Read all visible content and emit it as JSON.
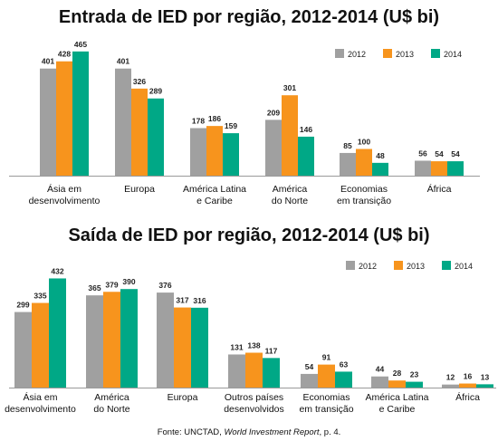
{
  "colors": {
    "2012": "#a0a0a0",
    "2013": "#f7941d",
    "2014": "#00a886",
    "axis": "#9a9a9a"
  },
  "source": {
    "prefix": "Fonte: UNCTAD, ",
    "italic": "World Investment Report",
    "suffix": ", p. 4."
  },
  "chart_data": [
    {
      "type": "bar",
      "title": "Entrada de IED por região, 2012-2014 (U$ bi)",
      "legend": [
        "2012",
        "2013",
        "2014"
      ],
      "legend_position": "top-right",
      "categories": [
        [
          "Ásia em",
          "desenvolvimento"
        ],
        [
          "Europa"
        ],
        [
          "América Latina",
          "e Caribe"
        ],
        [
          "América",
          "do Norte"
        ],
        [
          "Economias",
          "em transição"
        ],
        [
          "África"
        ]
      ],
      "series": [
        {
          "name": "2012",
          "values": [
            401,
            401,
            178,
            209,
            85,
            56
          ]
        },
        {
          "name": "2013",
          "values": [
            428,
            326,
            186,
            301,
            100,
            54
          ]
        },
        {
          "name": "2014",
          "values": [
            465,
            289,
            159,
            146,
            48,
            54
          ]
        }
      ]
    },
    {
      "type": "bar",
      "title": "Saída de IED por região, 2012-2014 (U$ bi)",
      "legend": [
        "2012",
        "2013",
        "2014"
      ],
      "legend_position": "top-right",
      "categories": [
        [
          "Ásia em",
          "desenvolvimento"
        ],
        [
          "América",
          "do Norte"
        ],
        [
          "Europa"
        ],
        [
          "Outros países",
          "desenvolvidos"
        ],
        [
          "Economias",
          "em transição"
        ],
        [
          "América Latina",
          "e Caribe"
        ],
        [
          "África"
        ]
      ],
      "series": [
        {
          "name": "2012",
          "values": [
            299,
            365,
            376,
            131,
            54,
            44,
            12
          ]
        },
        {
          "name": "2013",
          "values": [
            335,
            379,
            317,
            138,
            91,
            28,
            16
          ]
        },
        {
          "name": "2014",
          "values": [
            432,
            390,
            316,
            117,
            63,
            23,
            13
          ]
        }
      ]
    }
  ]
}
